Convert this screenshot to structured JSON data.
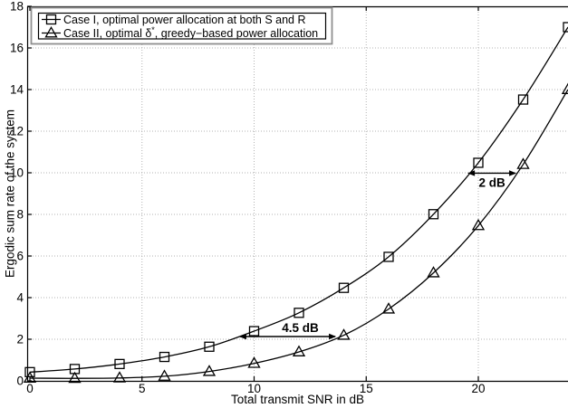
{
  "chart_data": {
    "type": "line",
    "title": "",
    "xlabel": "Total transmit SNR in dB",
    "ylabel": "Ergodic sum rate of the system",
    "xlim": [
      0,
      24
    ],
    "ylim": [
      0,
      18
    ],
    "xticks": [
      0,
      5,
      10,
      15,
      20
    ],
    "yticks": [
      0,
      2,
      4,
      6,
      8,
      10,
      12,
      14,
      16,
      18
    ],
    "grid": true,
    "legend_position": "top-left",
    "x": [
      0,
      2,
      4,
      6,
      8,
      10,
      12,
      14,
      16,
      18,
      20,
      22,
      24
    ],
    "series": [
      {
        "name": "Case I, optimal power allocation at both S and R",
        "name_parts": [
          {
            "t": "Case I, optimal power allocation at both S and R"
          }
        ],
        "marker": "square",
        "values": [
          0.42,
          0.57,
          0.81,
          1.15,
          1.64,
          2.39,
          3.27,
          4.47,
          5.96,
          8.01,
          10.48,
          13.52,
          17.0
        ]
      },
      {
        "name": "Case II, optimal δ*, greedy−based power allocation",
        "name_parts": [
          {
            "t": "Case II, optimal δ"
          },
          {
            "t": "*",
            "sup": true
          },
          {
            "t": ", greedy−based power allocation"
          }
        ],
        "marker": "triangle",
        "values": [
          0.13,
          0.12,
          0.14,
          0.22,
          0.45,
          0.84,
          1.39,
          2.19,
          3.45,
          5.19,
          7.46,
          10.4,
          14.0
        ]
      }
    ],
    "annotations": [
      {
        "label": "4.5 dB",
        "x_from": 9.33,
        "x_to": 13.66,
        "y": 2.13,
        "label_side": "above"
      },
      {
        "label": "2 dB",
        "x_from": 19.52,
        "x_to": 21.7,
        "y": 9.98,
        "label_side": "below"
      }
    ]
  },
  "colors": {
    "line": "#000000",
    "grid": "#b3b3b3",
    "axis": "#000000",
    "legend_outer_border": "#8f8f8f",
    "background": "#ffffff"
  }
}
